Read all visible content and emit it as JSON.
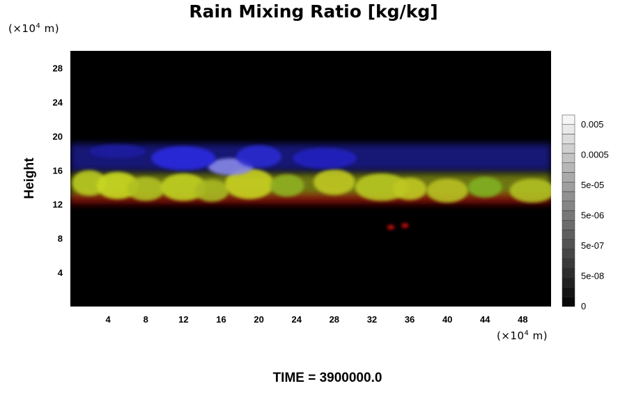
{
  "chart_data": {
    "type": "heatmap",
    "title": "Rain Mixing Ratio [kg/kg]",
    "ylabel": "Height",
    "x_unit_prefix": "(×10",
    "x_unit_exp": "4",
    "x_unit_suffix": " m)",
    "y_unit_prefix": "(×10",
    "y_unit_exp": "4",
    "y_unit_suffix": " m)",
    "xlim": [
      0,
      51
    ],
    "ylim": [
      0,
      30
    ],
    "x_ticks": [
      4,
      8,
      12,
      16,
      20,
      24,
      28,
      32,
      36,
      40,
      44,
      48
    ],
    "y_ticks": [
      4,
      8,
      12,
      16,
      20,
      24,
      28
    ],
    "colorbar_labels": [
      "0.005",
      "0.0005",
      "5e-05",
      "5e-06",
      "5e-07",
      "5e-08",
      "0"
    ],
    "colorbar_levels": 20,
    "background_color": "#000000",
    "bands": [
      {
        "name": "upper",
        "color": "#2a2ad8",
        "x_start": 0,
        "x_end": 51,
        "y_center": 17.5,
        "y_spread": 1.6
      },
      {
        "name": "mid",
        "color": "#c8d820",
        "x_start": 0,
        "x_end": 51,
        "y_center": 14.2,
        "y_spread": 1.4
      },
      {
        "name": "lower",
        "color": "#c81010",
        "x_start": 0,
        "x_end": 51,
        "y_center": 12.6,
        "y_spread": 0.6
      }
    ],
    "blobs": [
      {
        "x": 2,
        "y": 14.5,
        "rx": 1.8,
        "ry": 1.5,
        "color": "#b8c820"
      },
      {
        "x": 5,
        "y": 14.2,
        "rx": 2.2,
        "ry": 1.6,
        "color": "#c8d820"
      },
      {
        "x": 8,
        "y": 13.8,
        "rx": 2.0,
        "ry": 1.4,
        "color": "#b0c020"
      },
      {
        "x": 12,
        "y": 14.0,
        "rx": 2.4,
        "ry": 1.6,
        "color": "#c0d020"
      },
      {
        "x": 15,
        "y": 13.6,
        "rx": 1.8,
        "ry": 1.3,
        "color": "#a8b820"
      },
      {
        "x": 19,
        "y": 14.4,
        "rx": 2.6,
        "ry": 1.8,
        "color": "#c8d020"
      },
      {
        "x": 23,
        "y": 14.2,
        "rx": 1.8,
        "ry": 1.3,
        "color": "#90b020"
      },
      {
        "x": 28,
        "y": 14.6,
        "rx": 2.2,
        "ry": 1.5,
        "color": "#c0c820"
      },
      {
        "x": 33,
        "y": 14.0,
        "rx": 2.8,
        "ry": 1.6,
        "color": "#b8c820"
      },
      {
        "x": 36,
        "y": 13.8,
        "rx": 1.8,
        "ry": 1.3,
        "color": "#c0c820"
      },
      {
        "x": 40,
        "y": 13.6,
        "rx": 2.2,
        "ry": 1.4,
        "color": "#b8c020"
      },
      {
        "x": 44,
        "y": 14.0,
        "rx": 1.8,
        "ry": 1.2,
        "color": "#80b020"
      },
      {
        "x": 49,
        "y": 13.6,
        "rx": 2.4,
        "ry": 1.4,
        "color": "#b0c020"
      },
      {
        "x": 17,
        "y": 16.4,
        "rx": 2.4,
        "ry": 1.0,
        "color": "#8888e8"
      },
      {
        "x": 12,
        "y": 17.4,
        "rx": 3.4,
        "ry": 1.4,
        "color": "#2a2ae0"
      },
      {
        "x": 20,
        "y": 17.6,
        "rx": 2.4,
        "ry": 1.3,
        "color": "#2a2ad0"
      },
      {
        "x": 27,
        "y": 17.4,
        "rx": 3.4,
        "ry": 1.2,
        "color": "#2020c0"
      },
      {
        "x": 5,
        "y": 18.2,
        "rx": 3.0,
        "ry": 0.8,
        "color": "#1a1aa0"
      },
      {
        "x": 34,
        "y": 9.3,
        "rx": 0.4,
        "ry": 0.3,
        "color": "#c81010"
      },
      {
        "x": 35.5,
        "y": 9.5,
        "rx": 0.4,
        "ry": 0.3,
        "color": "#c81010"
      }
    ]
  },
  "time_label": "TIME = 3900000.0"
}
